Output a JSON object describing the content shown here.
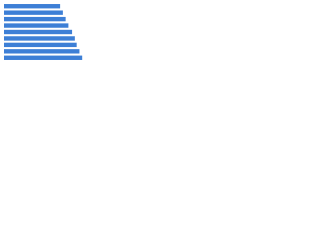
{
  "chart_data": {
    "type": "bar",
    "orientation": "horizontal",
    "categories": [
      null,
      null,
      null,
      null,
      null,
      null,
      null,
      null,
      null
    ],
    "values": [
      61,
      64,
      67,
      70,
      74,
      77,
      79,
      82,
      85
    ],
    "color": "#3d7fd6",
    "xlim": [
      0,
      100
    ],
    "grid": false
  }
}
